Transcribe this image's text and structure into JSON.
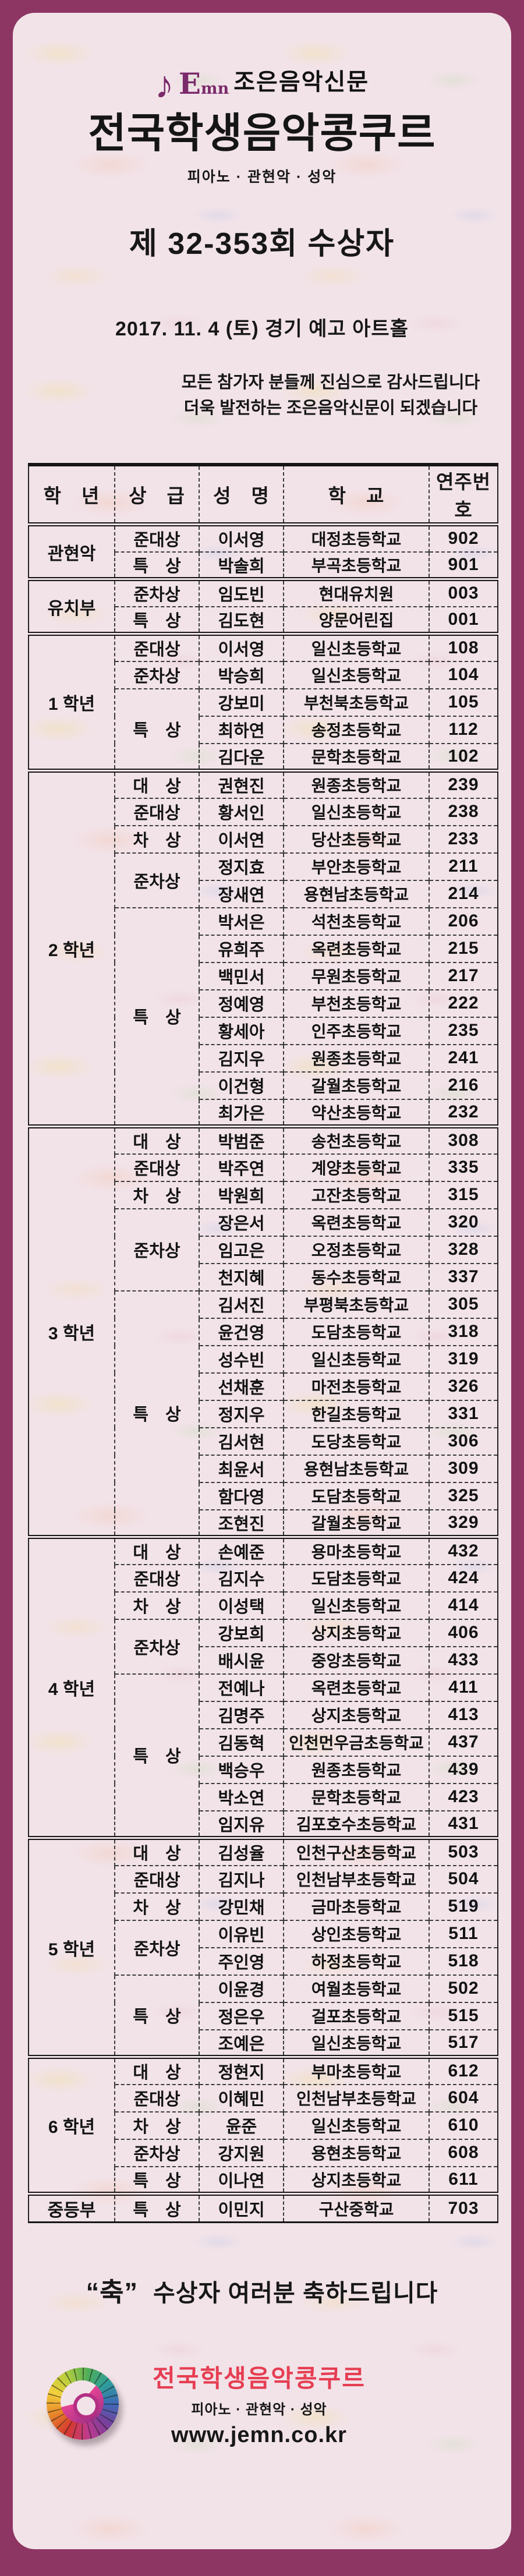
{
  "header": {
    "logo_emn_big": "E",
    "logo_emn_small": "mn",
    "logo_text": "조은음악신문",
    "title": "전국학생음악콩쿠르",
    "subtitle": "피아노 · 관현악 · 성악",
    "round_title": "제 32-353회 수상자",
    "event_info": "2017. 11. 4 (토) 경기 예고 아트홀",
    "thanks_line1": "모든 참가자 분들께 진심으로 감사드립니다",
    "thanks_line2": "더욱 발전하는 조은음악신문이 되겠습니다"
  },
  "table": {
    "columns": [
      "학　년",
      "상　급",
      "성　명",
      "학　교",
      "연주번호"
    ],
    "grades": [
      {
        "grade": "관현악",
        "groups": [
          {
            "prize": "준대상",
            "rows": [
              {
                "name": "이서영",
                "school": "대정초등학교",
                "no": "902"
              }
            ]
          },
          {
            "prize": "특　상",
            "rows": [
              {
                "name": "박솔희",
                "school": "부곡초등학교",
                "no": "901"
              }
            ]
          }
        ]
      },
      {
        "grade": "유치부",
        "groups": [
          {
            "prize": "준차상",
            "rows": [
              {
                "name": "임도빈",
                "school": "현대유치원",
                "no": "003"
              }
            ]
          },
          {
            "prize": "특　상",
            "rows": [
              {
                "name": "김도현",
                "school": "양문어린집",
                "no": "001"
              }
            ]
          }
        ]
      },
      {
        "grade": "1 학년",
        "groups": [
          {
            "prize": "준대상",
            "rows": [
              {
                "name": "이서영",
                "school": "일신초등학교",
                "no": "108"
              }
            ]
          },
          {
            "prize": "준차상",
            "rows": [
              {
                "name": "박승희",
                "school": "일신초등학교",
                "no": "104"
              }
            ]
          },
          {
            "prize": "특　상",
            "rows": [
              {
                "name": "강보미",
                "school": "부천북초등학교",
                "no": "105"
              },
              {
                "name": "최하연",
                "school": "송정초등학교",
                "no": "112"
              },
              {
                "name": "김다운",
                "school": "문학초등학교",
                "no": "102"
              }
            ]
          }
        ]
      },
      {
        "grade": "2 학년",
        "groups": [
          {
            "prize": "대　상",
            "rows": [
              {
                "name": "권현진",
                "school": "원종초등학교",
                "no": "239"
              }
            ]
          },
          {
            "prize": "준대상",
            "rows": [
              {
                "name": "황서인",
                "school": "일신초등학교",
                "no": "238"
              }
            ]
          },
          {
            "prize": "차　상",
            "rows": [
              {
                "name": "이서연",
                "school": "당산초등학교",
                "no": "233"
              }
            ]
          },
          {
            "prize": "준차상",
            "rows": [
              {
                "name": "정지효",
                "school": "부안초등학교",
                "no": "211"
              },
              {
                "name": "장새연",
                "school": "용현남초등학교",
                "no": "214"
              }
            ]
          },
          {
            "prize": "특　상",
            "rows": [
              {
                "name": "박서은",
                "school": "석천초등학교",
                "no": "206"
              },
              {
                "name": "유희주",
                "school": "옥련초등학교",
                "no": "215"
              },
              {
                "name": "백민서",
                "school": "무원초등학교",
                "no": "217"
              },
              {
                "name": "정예영",
                "school": "부천초등학교",
                "no": "222"
              },
              {
                "name": "황세아",
                "school": "인주초등학교",
                "no": "235"
              },
              {
                "name": "김지우",
                "school": "원종초등학교",
                "no": "241"
              },
              {
                "name": "이건형",
                "school": "갈월초등학교",
                "no": "216"
              },
              {
                "name": "최가은",
                "school": "약산초등학교",
                "no": "232"
              }
            ]
          }
        ]
      },
      {
        "grade": "3 학년",
        "groups": [
          {
            "prize": "대　상",
            "rows": [
              {
                "name": "박범준",
                "school": "송천초등학교",
                "no": "308"
              }
            ]
          },
          {
            "prize": "준대상",
            "rows": [
              {
                "name": "박주연",
                "school": "계양초등학교",
                "no": "335"
              }
            ]
          },
          {
            "prize": "차　상",
            "rows": [
              {
                "name": "박원희",
                "school": "고잔초등학교",
                "no": "315"
              }
            ]
          },
          {
            "prize": "준차상",
            "rows": [
              {
                "name": "장은서",
                "school": "옥련초등학교",
                "no": "320"
              },
              {
                "name": "임고은",
                "school": "오정초등학교",
                "no": "328"
              },
              {
                "name": "천지혜",
                "school": "동수초등학교",
                "no": "337"
              }
            ]
          },
          {
            "prize": "특　상",
            "rows": [
              {
                "name": "김서진",
                "school": "부평북초등학교",
                "no": "305"
              },
              {
                "name": "윤건영",
                "school": "도담초등학교",
                "no": "318"
              },
              {
                "name": "성수빈",
                "school": "일신초등학교",
                "no": "319"
              },
              {
                "name": "선채훈",
                "school": "마전초등학교",
                "no": "326"
              },
              {
                "name": "정지우",
                "school": "한길초등학교",
                "no": "331"
              },
              {
                "name": "김서현",
                "school": "도당초등학교",
                "no": "306"
              },
              {
                "name": "최윤서",
                "school": "용현남초등학교",
                "no": "309"
              },
              {
                "name": "함다영",
                "school": "도담초등학교",
                "no": "325"
              },
              {
                "name": "조현진",
                "school": "갈월초등학교",
                "no": "329"
              }
            ]
          }
        ]
      },
      {
        "grade": "4 학년",
        "groups": [
          {
            "prize": "대　상",
            "rows": [
              {
                "name": "손예준",
                "school": "용마초등학교",
                "no": "432"
              }
            ]
          },
          {
            "prize": "준대상",
            "rows": [
              {
                "name": "김지수",
                "school": "도담초등학교",
                "no": "424"
              }
            ]
          },
          {
            "prize": "차　상",
            "rows": [
              {
                "name": "이성택",
                "school": "일신초등학교",
                "no": "414"
              }
            ]
          },
          {
            "prize": "준차상",
            "rows": [
              {
                "name": "강보희",
                "school": "상지초등학교",
                "no": "406"
              },
              {
                "name": "배시윤",
                "school": "중앙초등학교",
                "no": "433"
              }
            ]
          },
          {
            "prize": "특　상",
            "rows": [
              {
                "name": "전예나",
                "school": "옥련초등학교",
                "no": "411"
              },
              {
                "name": "김명주",
                "school": "상지초등학교",
                "no": "413"
              },
              {
                "name": "김동혁",
                "school": "인천먼우금초등학교",
                "no": "437"
              },
              {
                "name": "백승우",
                "school": "원종초등학교",
                "no": "439"
              },
              {
                "name": "박소연",
                "school": "문학초등학교",
                "no": "423"
              },
              {
                "name": "임지유",
                "school": "김포호수초등학교",
                "no": "431"
              }
            ]
          }
        ]
      },
      {
        "grade": "5 학년",
        "groups": [
          {
            "prize": "대　상",
            "rows": [
              {
                "name": "김성율",
                "school": "인천구산초등학교",
                "no": "503"
              }
            ]
          },
          {
            "prize": "준대상",
            "rows": [
              {
                "name": "김지나",
                "school": "인천남부초등학교",
                "no": "504"
              }
            ]
          },
          {
            "prize": "차　상",
            "rows": [
              {
                "name": "강민채",
                "school": "금마초등학교",
                "no": "519"
              }
            ]
          },
          {
            "prize": "준차상",
            "rows": [
              {
                "name": "이유빈",
                "school": "상인초등학교",
                "no": "511"
              },
              {
                "name": "주인영",
                "school": "하정초등학교",
                "no": "518"
              }
            ]
          },
          {
            "prize": "특　상",
            "rows": [
              {
                "name": "이윤경",
                "school": "여월초등학교",
                "no": "502"
              },
              {
                "name": "정은우",
                "school": "걸포초등학교",
                "no": "515"
              },
              {
                "name": "조예은",
                "school": "일신초등학교",
                "no": "517"
              }
            ]
          }
        ]
      },
      {
        "grade": "6 학년",
        "groups": [
          {
            "prize": "대　상",
            "rows": [
              {
                "name": "정현지",
                "school": "부마초등학교",
                "no": "612"
              }
            ]
          },
          {
            "prize": "준대상",
            "rows": [
              {
                "name": "이혜민",
                "school": "인천남부초등학교",
                "no": "604"
              }
            ]
          },
          {
            "prize": "차　상",
            "rows": [
              {
                "name": "윤준",
                "school": "일신초등학교",
                "no": "610"
              }
            ]
          },
          {
            "prize": "준차상",
            "rows": [
              {
                "name": "강지원",
                "school": "용현초등학교",
                "no": "608"
              }
            ]
          },
          {
            "prize": "특　상",
            "rows": [
              {
                "name": "이나연",
                "school": "상지초등학교",
                "no": "611"
              }
            ]
          }
        ]
      },
      {
        "grade": "중등부",
        "groups": [
          {
            "prize": "특　상",
            "rows": [
              {
                "name": "이민지",
                "school": "구산중학교",
                "no": "703"
              }
            ]
          }
        ]
      }
    ]
  },
  "footer": {
    "congrats_quote": "“축”",
    "congrats_text": "수상자 여러분 축하드립니다",
    "brand_title": "전국학생음악콩쿠르",
    "brand_subtitle": "피아노 · 관현악 · 성악",
    "website": "www.jemn.co.kr"
  },
  "colors": {
    "frame": "#8d3663",
    "card_bg": "#f2e3e9",
    "logo_purple": "#7b2a6b",
    "footer_red": "#e63e52",
    "table_line": "#161616"
  }
}
